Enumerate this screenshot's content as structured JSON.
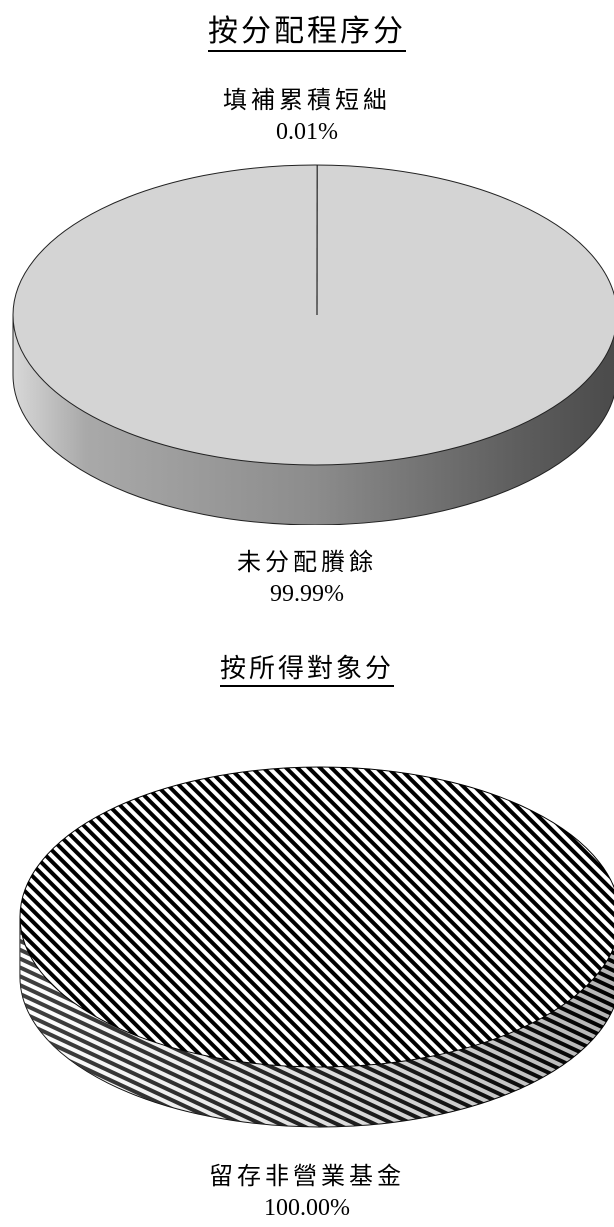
{
  "chart_data": [
    {
      "type": "pie",
      "title": "按分配程序分",
      "slices": [
        {
          "label": "填補累積短絀",
          "pct_text": "0.01%",
          "value": 0.01
        },
        {
          "label": "未分配賸餘",
          "pct_text": "99.99%",
          "value": 99.99
        }
      ],
      "fill": "#d4d4d4",
      "style": "3d"
    },
    {
      "type": "pie",
      "title": "按所得對象分",
      "slices": [
        {
          "label": "留存非營業基金",
          "pct_text": "100.00%",
          "value": 100.0
        }
      ],
      "fill": "diagonal-stripes-black-white",
      "style": "3d"
    }
  ]
}
